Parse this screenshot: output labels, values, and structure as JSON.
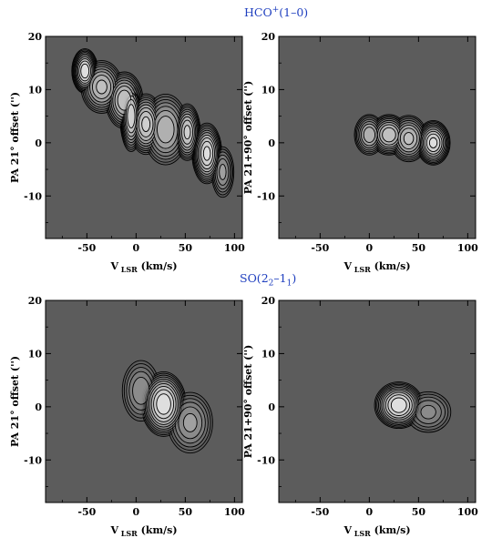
{
  "figure": {
    "row_titles": [
      {
        "text": "HCO",
        "sup": "+",
        "rest": "(1–0)"
      },
      {
        "text": "SO(2",
        "sub1": "2",
        "mid": "–1",
        "sub2": "1",
        "rest": ")"
      }
    ]
  },
  "chart_data": [
    {
      "type": "contour",
      "title": "HCO+(1-0)",
      "xlabel": "V_LSR (km/s)",
      "ylabel": "PA 21° offset ('')",
      "xlim": [
        -92,
        108
      ],
      "ylim": [
        -18,
        20
      ],
      "xticks": [
        -50,
        0,
        50,
        100
      ],
      "yticks": [
        -10,
        0,
        10,
        20
      ],
      "background": "#5c5c5c",
      "emission": [
        {
          "v": -52,
          "off": 13.5,
          "peak": 1.0,
          "sv": 7,
          "so": 2.2
        },
        {
          "v": -35,
          "off": 10.5,
          "peak": 0.75,
          "sv": 11,
          "so": 2.6
        },
        {
          "v": -12,
          "off": 8.0,
          "peak": 0.8,
          "sv": 10,
          "so": 2.8
        },
        {
          "v": -5,
          "off": 5.0,
          "peak": 0.9,
          "sv": 6,
          "so": 3.5
        },
        {
          "v": 10,
          "off": 3.5,
          "peak": 0.85,
          "sv": 9,
          "so": 3.0
        },
        {
          "v": 30,
          "off": 2.5,
          "peak": 0.7,
          "sv": 12,
          "so": 3.5
        },
        {
          "v": 52,
          "off": 2.0,
          "peak": 0.85,
          "sv": 7,
          "so": 2.8
        },
        {
          "v": 72,
          "off": -2.0,
          "peak": 0.95,
          "sv": 8,
          "so": 3.0
        },
        {
          "v": 88,
          "off": -5.5,
          "peak": 0.55,
          "sv": 6,
          "so": 2.5
        }
      ]
    },
    {
      "type": "contour",
      "title": "HCO+(1-0)",
      "xlabel": "V_LSR (km/s)",
      "ylabel": "PA 21+90° offset ('')",
      "xlim": [
        -92,
        108
      ],
      "ylim": [
        -18,
        20
      ],
      "xticks": [
        -50,
        0,
        50,
        100
      ],
      "yticks": [
        -10,
        0,
        10,
        20
      ],
      "background": "#5c5c5c",
      "emission": [
        {
          "v": 0,
          "off": 1.5,
          "peak": 0.7,
          "sv": 8,
          "so": 2.0
        },
        {
          "v": 20,
          "off": 1.5,
          "peak": 0.8,
          "sv": 10,
          "so": 2.0
        },
        {
          "v": 40,
          "off": 0.8,
          "peak": 0.75,
          "sv": 10,
          "so": 2.3
        },
        {
          "v": 65,
          "off": 0.0,
          "peak": 0.95,
          "sv": 9,
          "so": 2.2
        }
      ]
    },
    {
      "type": "contour",
      "title": "SO(2_2-1_1)",
      "xlabel": "V_LSR (km/s)",
      "ylabel": "PA 21° offset ('')",
      "xlim": [
        -92,
        108
      ],
      "ylim": [
        -18,
        20
      ],
      "xticks": [
        -50,
        0,
        50,
        100
      ],
      "yticks": [
        -10,
        0,
        10,
        20
      ],
      "background": "#5c5c5c",
      "emission": [
        {
          "v": 5,
          "off": 3.0,
          "peak": 0.5,
          "sv": 10,
          "so": 3.0
        },
        {
          "v": 28,
          "off": 0.5,
          "peak": 1.0,
          "sv": 12,
          "so": 3.2
        },
        {
          "v": 55,
          "off": -3.0,
          "peak": 0.55,
          "sv": 12,
          "so": 3.0
        }
      ]
    },
    {
      "type": "contour",
      "title": "SO(2_2-1_1)",
      "xlabel": "V_LSR (km/s)",
      "ylabel": "PA 21+90° offset ('')",
      "xlim": [
        -92,
        108
      ],
      "ylim": [
        -18,
        20
      ],
      "xticks": [
        -50,
        0,
        50,
        100
      ],
      "yticks": [
        -10,
        0,
        10,
        20
      ],
      "background": "#5c5c5c",
      "emission": [
        {
          "v": 30,
          "off": 0.3,
          "peak": 1.0,
          "sv": 13,
          "so": 2.3
        },
        {
          "v": 60,
          "off": -1.0,
          "peak": 0.45,
          "sv": 12,
          "so": 2.0
        }
      ]
    }
  ]
}
